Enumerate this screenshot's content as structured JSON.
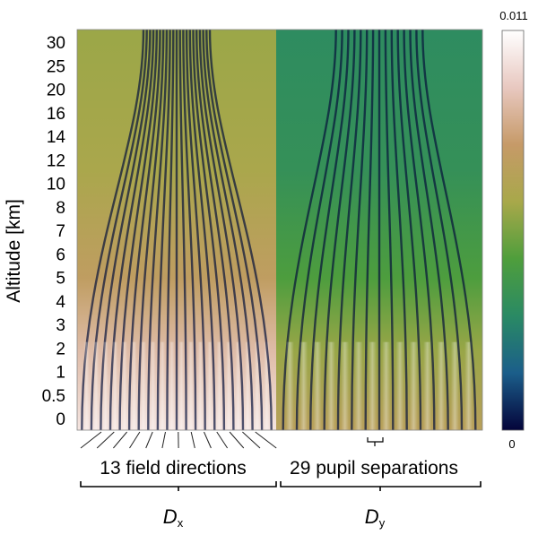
{
  "chart_data": {
    "type": "heatmap",
    "title": "",
    "ylabel": "Altitude [km]",
    "y_ticks": [
      "30",
      "25",
      "20",
      "16",
      "14",
      "12",
      "10",
      "8",
      "7",
      "6",
      "5",
      "4",
      "3",
      "2",
      "1",
      "0.5",
      "0"
    ],
    "colorbar": {
      "min_label": "0",
      "max_label": "0.011",
      "range": [
        0,
        0.011
      ],
      "colors": [
        "#04043a",
        "#1b5e8a",
        "#2a8a64",
        "#4f9e3c",
        "#a8a84a",
        "#c69a68",
        "#e8c8c0",
        "#ffffff"
      ]
    },
    "sections": [
      {
        "name": "field-directions",
        "label": "13 field directions",
        "count": 13,
        "group": "D",
        "sub": "x"
      },
      {
        "name": "pupil-separations",
        "label": "29 pupil separations",
        "count": 29,
        "group": "D",
        "sub": "y"
      }
    ],
    "color_levels": {
      "field": {
        "high_altitude": 0.55,
        "low_altitude": 0.93
      },
      "pupil": {
        "high_altitude": 0.3,
        "low_altitude": 0.65
      }
    }
  }
}
